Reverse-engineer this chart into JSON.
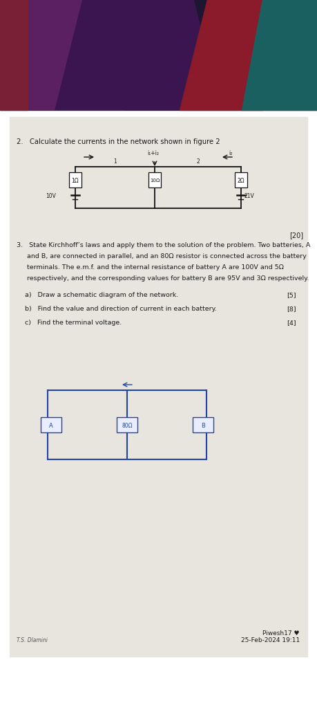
{
  "title_q2": "2.   Calculate the currents in the network shown in figure 2",
  "mark_q2": "[20]",
  "q3_line1": "3.   State Kirchhoff’s laws and apply them to the solution of the problem. Two batteries, A",
  "q3_line2": "     and B, are connected in parallel, and an 80Ω resistor is connected across the battery",
  "q3_line3": "     terminals. The e.m.f. and the internal resistance of battery A are 100V and 5Ω",
  "q3_line4": "     respectively, and the corresponding values for battery B are 95V and 3Ω respectively.",
  "q3a_text": "a)   Draw a schematic diagram of the network.",
  "q3b_text": "b)   Find the value and direction of current in each battery.",
  "q3c_text": "c)   Find the terminal voltage.",
  "mark3a": "[5]",
  "mark3b": "[8]",
  "mark3c": "[4]",
  "footer_left": "T.S. Dlamini",
  "footer_right": "Piwesh17 ♥\n25-Feb-2024 19:11",
  "paper_color": "#e8e5df",
  "text_color": "#1a1a1a",
  "circuit_color": "#111111",
  "handdrawn_color": "#2244aa",
  "bg_dark": "#1e1530",
  "bg_purple": "#4a2060",
  "bg_red": "#8b1a30",
  "bg_teal": "#1a6060"
}
